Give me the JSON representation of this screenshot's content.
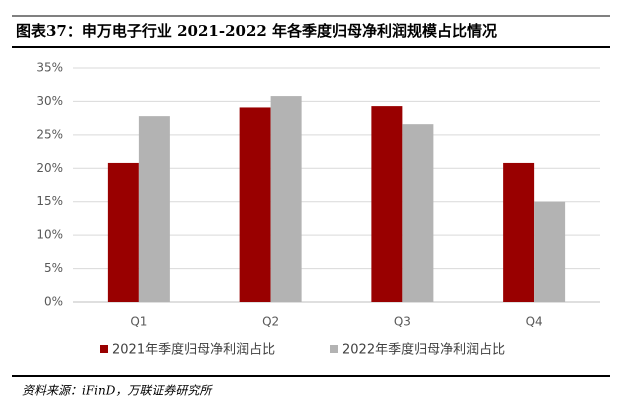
{
  "chart_data": {
    "type": "bar",
    "title": "图表37：申万电子行业 2021-2022 年各季度归母净利润规模占比情况",
    "source": "资料来源：iFinD，万联证券研究所",
    "categories": [
      "Q1",
      "Q2",
      "Q3",
      "Q4"
    ],
    "series": [
      {
        "name": "2021年季度归母净利润占比",
        "color": "#990000",
        "values": [
          20.8,
          29.1,
          29.3,
          20.8
        ]
      },
      {
        "name": "2022年季度归母净利润占比",
        "color": "#b3b3b3",
        "values": [
          27.8,
          30.8,
          26.6,
          15.0
        ]
      }
    ],
    "ylim": [
      0,
      35
    ],
    "yticks": [
      {
        "value": 0,
        "label": "0%"
      },
      {
        "value": 5,
        "label": "5%"
      },
      {
        "value": 10,
        "label": "10%"
      },
      {
        "value": 15,
        "label": "15%"
      },
      {
        "value": 20,
        "label": "20%"
      },
      {
        "value": 25,
        "label": "25%"
      },
      {
        "value": 30,
        "label": "30%"
      },
      {
        "value": 35,
        "label": "35%"
      }
    ],
    "grid": true,
    "legend": "bottom"
  }
}
